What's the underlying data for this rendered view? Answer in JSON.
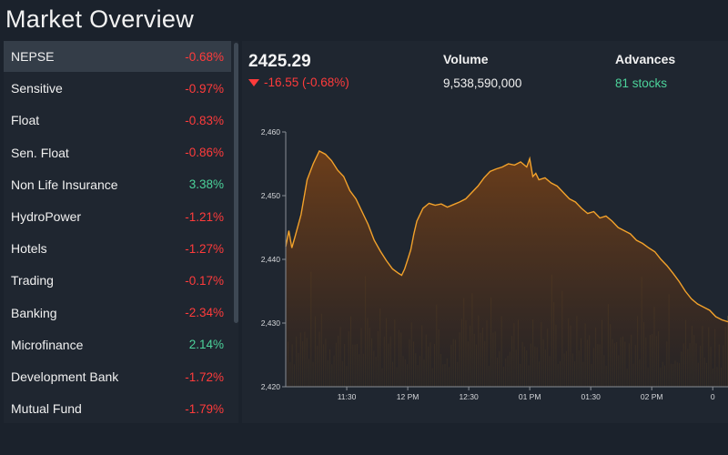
{
  "header": {
    "title": "Market Overview"
  },
  "sidebar": {
    "items": [
      {
        "label": "NEPSE",
        "change": "-0.68%",
        "dir": "neg"
      },
      {
        "label": "Sensitive",
        "change": "-0.97%",
        "dir": "neg"
      },
      {
        "label": "Float",
        "change": "-0.83%",
        "dir": "neg"
      },
      {
        "label": "Sen. Float",
        "change": "-0.86%",
        "dir": "neg"
      },
      {
        "label": "Non Life Insurance",
        "change": "3.38%",
        "dir": "pos"
      },
      {
        "label": "HydroPower",
        "change": "-1.21%",
        "dir": "neg"
      },
      {
        "label": "Hotels",
        "change": "-1.27%",
        "dir": "neg"
      },
      {
        "label": "Trading",
        "change": "-0.17%",
        "dir": "neg"
      },
      {
        "label": "Banking",
        "change": "-2.34%",
        "dir": "neg"
      },
      {
        "label": "Microfinance",
        "change": "2.14%",
        "dir": "pos"
      },
      {
        "label": "Development Bank",
        "change": "-1.72%",
        "dir": "neg"
      },
      {
        "label": "Mutual Fund",
        "change": "-1.79%",
        "dir": "neg"
      }
    ]
  },
  "summary": {
    "price": "2425.29",
    "change": "-16.55 (-0.68%)",
    "volume_label": "Volume",
    "volume_value": "9,538,590,000",
    "advances_label": "Advances",
    "advances_value": "81 stocks"
  },
  "colors": {
    "negative": "#ff3b3b",
    "positive": "#4cd29a",
    "line": "#f3a22b"
  },
  "chart_data": {
    "type": "area",
    "ylim": [
      2420,
      2460
    ],
    "yticks": [
      2420,
      2430,
      2440,
      2450,
      2460
    ],
    "ytick_labels": [
      "2,420",
      "2,430",
      "2,440",
      "2,450",
      "2,460"
    ],
    "x_range": [
      0,
      145
    ],
    "xticks": [
      20,
      40,
      60,
      80,
      100,
      120,
      140
    ],
    "xtick_labels": [
      "11:30",
      "12 PM",
      "12:30",
      "01 PM",
      "01:30",
      "02 PM",
      "0"
    ],
    "series": [
      {
        "name": "NEPSE",
        "x": [
          0,
          1,
          2,
          3,
          5,
          7,
          9,
          11,
          13,
          15,
          17,
          19,
          21,
          23,
          25,
          27,
          29,
          31,
          33,
          35,
          37,
          38,
          39,
          40,
          41,
          42,
          43,
          45,
          47,
          49,
          51,
          53,
          55,
          57,
          59,
          61,
          63,
          65,
          67,
          69,
          71,
          73,
          75,
          77,
          79,
          80,
          81,
          82,
          83,
          85,
          87,
          89,
          91,
          93,
          95,
          97,
          99,
          101,
          103,
          105,
          107,
          109,
          111,
          113,
          115,
          117,
          119,
          121,
          123,
          125,
          127,
          129,
          131,
          133,
          135,
          137,
          139,
          141,
          143,
          145
        ],
        "values": [
          2442,
          2444.5,
          2441.8,
          2443.5,
          2447,
          2452.5,
          2455,
          2457,
          2456.5,
          2455.5,
          2454,
          2453,
          2450.8,
          2449.5,
          2447.5,
          2445.5,
          2443,
          2441.3,
          2439.8,
          2438.5,
          2437.8,
          2437.5,
          2438.5,
          2440,
          2441.5,
          2444,
          2446,
          2448,
          2448.8,
          2448.5,
          2448.7,
          2448.2,
          2448.6,
          2449,
          2449.5,
          2450.5,
          2451.5,
          2452.8,
          2453.8,
          2454.2,
          2454.5,
          2455,
          2454.8,
          2455.3,
          2454.5,
          2455.8,
          2453,
          2453.5,
          2452.5,
          2452.8,
          2452,
          2451.5,
          2450.5,
          2449.5,
          2449,
          2448,
          2447.2,
          2447.5,
          2446.5,
          2446.8,
          2446,
          2445,
          2444.5,
          2444,
          2443,
          2442.5,
          2441.8,
          2441.2,
          2440,
          2439,
          2437.8,
          2436.5,
          2435,
          2433.8,
          2433,
          2432.5,
          2432,
          2431,
          2430.5,
          2430.2
        ]
      }
    ]
  }
}
